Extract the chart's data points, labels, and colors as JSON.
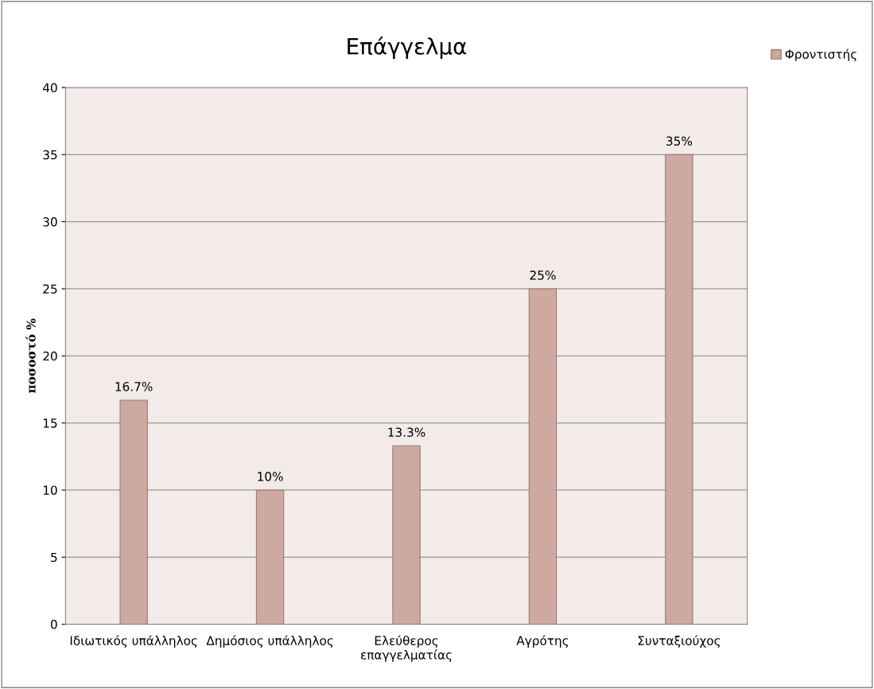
{
  "chart_data": {
    "type": "bar",
    "title": "Επάγγελμα",
    "ylabel": "ποσοστό %",
    "categories": [
      "Ιδιωτικός υπάλληλος",
      "Δημόσιος υπάλληλος",
      "Ελεύθερος\nεπαγγελματίας",
      "Αγρότης",
      "Συνταξιούχος"
    ],
    "series": [
      {
        "name": "Φροντιστής",
        "color": "#cda9a0",
        "values": [
          16.7,
          10,
          13.3,
          25,
          35
        ],
        "value_labels": [
          "16.7%",
          "10%",
          "13.3%",
          "25%",
          "35%"
        ]
      }
    ],
    "ylim": [
      0,
      40
    ],
    "yticks": [
      0,
      5,
      10,
      15,
      20,
      25,
      30,
      35,
      40
    ],
    "grid": "y",
    "legend": "top right"
  }
}
